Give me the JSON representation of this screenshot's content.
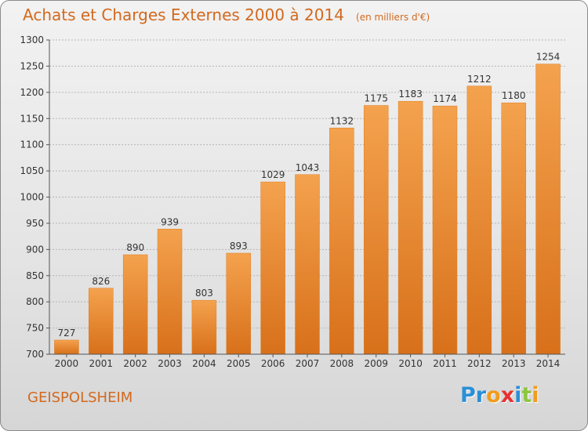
{
  "chart_data": {
    "type": "bar",
    "title": "Achats et Charges Externes 2000 à 2014",
    "subtitle": "(en milliers d'€)",
    "categories": [
      "2000",
      "2001",
      "2002",
      "2003",
      "2004",
      "2005",
      "2006",
      "2007",
      "2008",
      "2009",
      "2010",
      "2011",
      "2012",
      "2013",
      "2014"
    ],
    "values": [
      727,
      826,
      890,
      939,
      803,
      893,
      1029,
      1043,
      1132,
      1175,
      1183,
      1174,
      1212,
      1180,
      1254
    ],
    "yticks": [
      700,
      750,
      800,
      850,
      900,
      950,
      1000,
      1050,
      1100,
      1150,
      1200,
      1250,
      1300
    ],
    "ylim": [
      700,
      1300
    ],
    "xlabel": "",
    "ylabel": "",
    "grid": true,
    "colors": {
      "bar": "#f08a2c",
      "bar_dark": "#d96f12",
      "title": "#d2691e"
    }
  },
  "location": "GEISPOLSHEIM",
  "brand": {
    "letters": [
      {
        "ch": "P",
        "color": "#2b8fd6"
      },
      {
        "ch": "r",
        "color": "#2b8fd6"
      },
      {
        "ch": "o",
        "color": "#f29b1d"
      },
      {
        "ch": "x",
        "color": "#e8312f"
      },
      {
        "ch": "i",
        "color": "#2b8fd6"
      },
      {
        "ch": "t",
        "color": "#8cc63f"
      },
      {
        "ch": "i",
        "color": "#f29b1d"
      }
    ]
  }
}
